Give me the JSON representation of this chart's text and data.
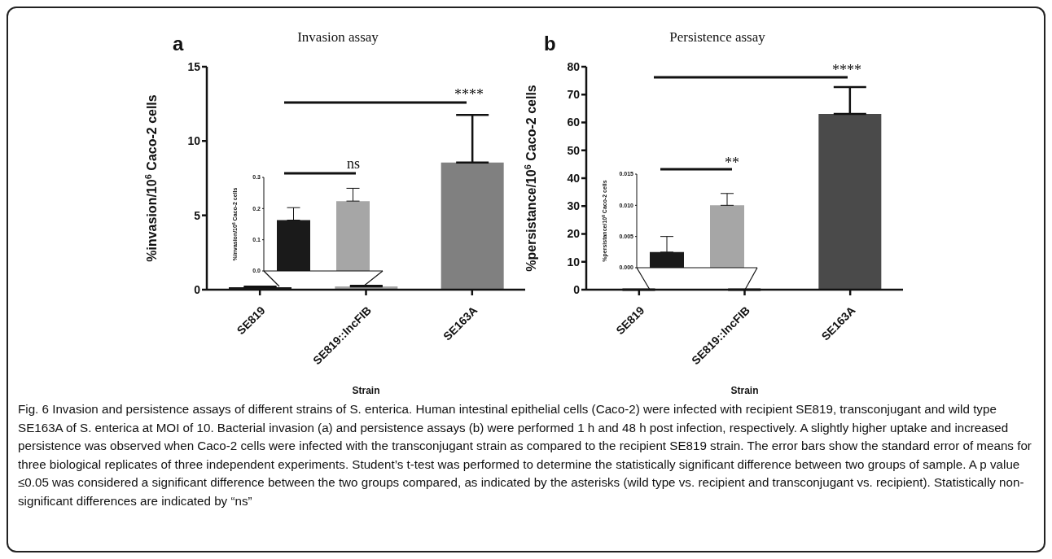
{
  "chart_data": [
    {
      "type": "bar",
      "title": "Invasion assay",
      "xlabel": "Strain",
      "ylabel": "%invasion/10$^{6}$ Caco-2 cells",
      "categories": [
        "SE819",
        "SE819::IncFIB",
        "SE163A"
      ],
      "values": [
        0.163,
        0.224,
        8.55
      ],
      "errors": [
        [
          0.163,
          0.203
        ],
        [
          0.224,
          0.265
        ],
        [
          8.55,
          11.75
        ]
      ],
      "colors": [
        "#1a1a1a",
        "#a6a6a6",
        "#808080"
      ],
      "ylim": [
        0,
        15
      ],
      "yticks": [
        0,
        5,
        10,
        15
      ],
      "grid": false,
      "annotations": [
        "a",
        "****"
      ]
    },
    {
      "type": "bar",
      "ylabel": "%invasion/10$^{6}$ Caco-2 cells",
      "categories": [
        null,
        null
      ],
      "values": [
        0.163,
        0.224
      ],
      "errors": [
        [
          0.163,
          0.203
        ],
        [
          0.224,
          0.265
        ]
      ],
      "colors": [
        "#1a1a1a",
        "#a6a6a6"
      ],
      "ylim": [
        0,
        0.3
      ],
      "yticks": [
        {
          "value": 0,
          "label": "0.0"
        },
        {
          "value": 0.1,
          "label": "0.1"
        },
        {
          "value": 0.2,
          "label": "0.2"
        },
        {
          "value": 0.3,
          "label": "0.3"
        }
      ],
      "tick_labels": "y",
      "grid": false,
      "annotations": [
        "ns"
      ]
    },
    {
      "type": "bar",
      "title": "Persistence assay",
      "xlabel": "Strain",
      "ylabel": "%persistance/10$^{6}$ Caco-2 cells",
      "categories": [
        "SE819",
        "SE819::IncFIB",
        "SE163A"
      ],
      "values": [
        0.0025,
        0.01,
        63.1
      ],
      "errors": [
        [
          0.0025,
          0.005
        ],
        [
          0.01,
          0.0119
        ],
        [
          63.1,
          72.7
        ]
      ],
      "colors": [
        "#1a1a1a",
        "#a6a6a6",
        "#4a4a4a"
      ],
      "ylim": [
        0,
        80
      ],
      "yticks": [
        0,
        10,
        20,
        30,
        40,
        50,
        60,
        70,
        80
      ],
      "grid": false,
      "annotations": [
        "b",
        "****",
        "Fig. 6 Invasion and persistence assays of different strains of S. enterica. Human intestinal epithelial cells (Caco-2) were infected with recipient SE819, transconjugant and wild type SE163A of S. enterica at MOI of 10. Bacterial invasion (a) and persistence assays (b) were performed 1 h and 48 h post infection, respectively. A slightly higher uptake and increased persistence was observed when Caco-2 cells were infected with the transconjugant strain as compared to the recipient SE819 strain. The error bars show the standard error of means for three biological replicates of three independent experiments. Student’s t-test was performed to determine the statistically significant difference between two groups of sample. A p value ≤0.05 was considered a significant difference between the two groups compared, as indicated by the asterisks (wild type vs. recipient and transconjugant vs. recipient). Statistically non-significant differences are indicated by “ns”"
      ]
    },
    {
      "type": "bar",
      "ylabel": "%persistance/10$^{6}$ Caco-2 cells",
      "categories": [
        null,
        null
      ],
      "values": [
        0.0025,
        0.01
      ],
      "errors": [
        [
          0.0025,
          0.005
        ],
        [
          0.01,
          0.0119
        ]
      ],
      "colors": [
        "#1a1a1a",
        "#a6a6a6"
      ],
      "ylim": [
        0,
        0.015
      ],
      "yticks": [
        {
          "value": 0,
          "label": "0.000"
        },
        {
          "value": 0.005,
          "label": "0.005"
        },
        {
          "value": 0.01,
          "label": "0.010"
        },
        {
          "value": 0.015,
          "label": "0.015"
        }
      ],
      "tick_labels": "y",
      "grid": false,
      "annotations": [
        "**"
      ]
    }
  ]
}
